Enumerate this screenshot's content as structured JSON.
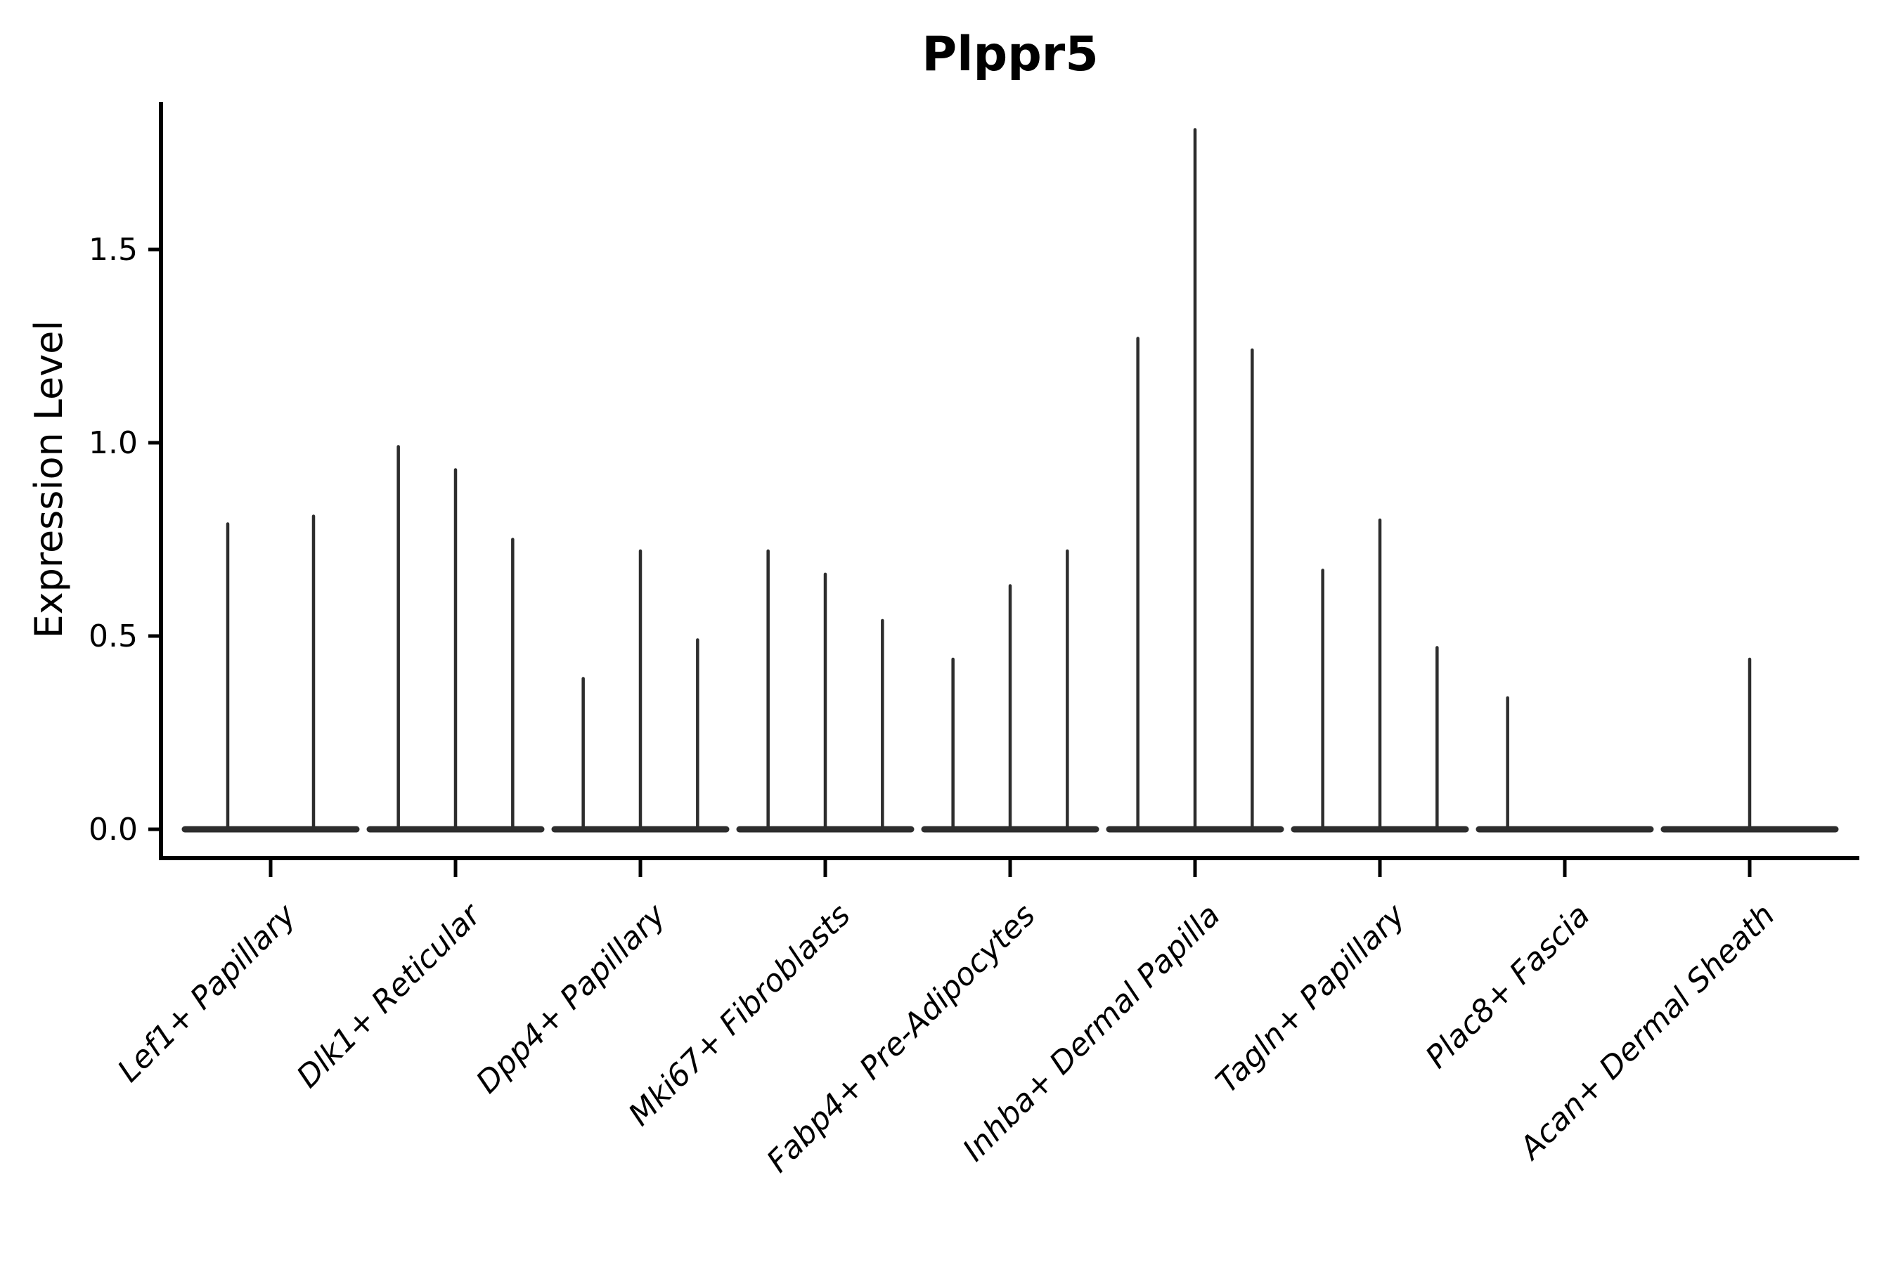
{
  "chart_data": {
    "type": "violin",
    "title": "Plppr5",
    "xlabel": "",
    "ylabel": "Expression Level",
    "categories": [
      "Lef1+ Papillary",
      "Dlk1+ Reticular",
      "Dpp4+ Papillary",
      "Mki67+ Fibroblasts",
      "Fabp4+ Pre-Adipocytes",
      "Inhba+ Dermal Papilla",
      "Tagln+ Papillary",
      "Plac8+ Fascia",
      "Acan+ Dermal Sheath"
    ],
    "series": [
      {
        "category": "Lef1+ Papillary",
        "spike_heights": [
          0.79,
          0.81
        ]
      },
      {
        "category": "Dlk1+ Reticular",
        "spike_heights": [
          0.99,
          0.93,
          0.75
        ]
      },
      {
        "category": "Dpp4+ Papillary",
        "spike_heights": [
          0.39,
          0.72,
          0.49
        ]
      },
      {
        "category": "Mki67+ Fibroblasts",
        "spike_heights": [
          0.72,
          0.66,
          0.54
        ]
      },
      {
        "category": "Fabp4+ Pre-Adipocytes",
        "spike_heights": [
          0.44,
          0.63,
          0.72
        ]
      },
      {
        "category": "Inhba+ Dermal Papilla",
        "spike_heights": [
          1.27,
          1.81,
          1.24
        ]
      },
      {
        "category": "Tagln+ Papillary",
        "spike_heights": [
          0.67,
          0.8,
          0.47
        ]
      },
      {
        "category": "Plac8+ Fascia",
        "spike_heights": [
          0.34,
          0.0,
          0.0
        ]
      },
      {
        "category": "Acan+ Dermal Sheath",
        "spike_heights": [
          0.0,
          0.44,
          0.0
        ]
      }
    ],
    "yticks": [
      "0.0",
      "0.5",
      "1.0",
      "1.5"
    ],
    "ytick_values": [
      0.0,
      0.5,
      1.0,
      1.5
    ],
    "ylim": [
      -0.07,
      1.89
    ],
    "grid": false,
    "legend": null,
    "violin_color": "#2d2d2d",
    "axis_color": "#000000"
  }
}
